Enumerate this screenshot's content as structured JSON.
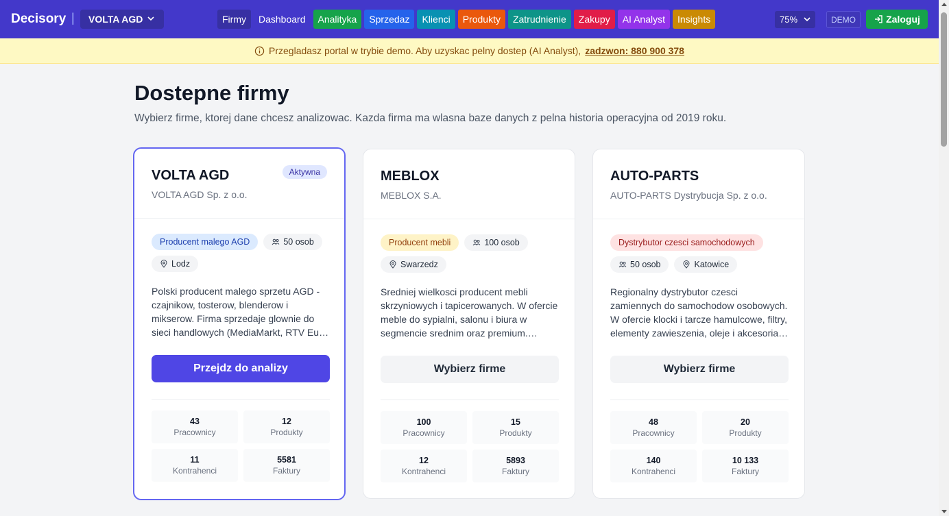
{
  "header": {
    "brand": "Decisory",
    "separator": "|",
    "company_selected": "VOLTA AGD",
    "nav": [
      {
        "label": "Firmy",
        "bg": "#3730a3"
      },
      {
        "label": "Dashboard",
        "bg": "transparent"
      },
      {
        "label": "Analityka",
        "bg": "#16a34a"
      },
      {
        "label": "Sprzedaz",
        "bg": "#2563eb"
      },
      {
        "label": "Klienci",
        "bg": "#0891b2"
      },
      {
        "label": "Produkty",
        "bg": "#ea580c"
      },
      {
        "label": "Zatrudnienie",
        "bg": "#0d9488"
      },
      {
        "label": "Zakupy",
        "bg": "#e11d48"
      },
      {
        "label": "AI Analyst",
        "bg": "#9333ea"
      },
      {
        "label": "Insights",
        "bg": "#ca8a04"
      }
    ],
    "zoom": "75%",
    "demo_badge": "DEMO",
    "login": "Zaloguj"
  },
  "banner": {
    "text": "Przegladasz portal w trybie demo. Aby uzyskac pelny dostep (AI Analyst),",
    "link": "zadzwon: 880 900 378"
  },
  "page": {
    "title": "Dostepne firmy",
    "subtitle": "Wybierz firme, ktorej dane chcesz analizowac. Kazda firma ma wlasna baze danych z pelna historia operacyjna od 2019 roku."
  },
  "companies": [
    {
      "name": "VOLTA AGD",
      "legal": "VOLTA AGD Sp. z o.o.",
      "active_badge": "Aktywna",
      "industry": "Producent malego AGD",
      "industry_bg": "#dbeafe",
      "industry_fg": "#1e40af",
      "size": "50 osob",
      "city": "Lodz",
      "description": "Polski producent malego sprzetu AGD - czajnikow, tosterow, blenderow i mikserow. Firma sprzedaje glownie do sieci handlowych (MediaMarkt, RTV Euro AGD) oraz przez wlasny sklep internetowy.",
      "cta": "Przejdz do analizy",
      "stats": [
        {
          "value": "43",
          "label": "Pracownicy"
        },
        {
          "value": "12",
          "label": "Produkty"
        },
        {
          "value": "11",
          "label": "Kontrahenci"
        },
        {
          "value": "5581",
          "label": "Faktury"
        }
      ]
    },
    {
      "name": "MEBLOX",
      "legal": "MEBLOX S.A.",
      "industry": "Producent mebli",
      "industry_bg": "#fef3c7",
      "industry_fg": "#92400e",
      "size": "100 osob",
      "city": "Swarzedz",
      "description": "Sredniej wielkosci producent mebli skrzyniowych i tapicerowanych. W ofercie meble do sypialni, salonu i biura w segmencie srednim oraz premium. Eksportuje do Niemiec i Skandynawii.",
      "cta": "Wybierz firme",
      "stats": [
        {
          "value": "100",
          "label": "Pracownicy"
        },
        {
          "value": "15",
          "label": "Produkty"
        },
        {
          "value": "12",
          "label": "Kontrahenci"
        },
        {
          "value": "5893",
          "label": "Faktury"
        }
      ]
    },
    {
      "name": "AUTO-PARTS",
      "legal": "AUTO-PARTS Dystrybucja Sp. z o.o.",
      "industry": "Dystrybutor czesci samochodowych",
      "industry_bg": "#fee2e2",
      "industry_fg": "#991b1b",
      "size": "50 osob",
      "city": "Katowice",
      "description": "Regionalny dystrybutor czesci zamiennych do samochodow osobowych. W ofercie klocki i tarcze hamulcowe, filtry, elementy zawieszenia, oleje i akcesoria. Obsluguje warsztaty i sklepy motoryzacyjne.",
      "cta": "Wybierz firme",
      "stats": [
        {
          "value": "48",
          "label": "Pracownicy"
        },
        {
          "value": "20",
          "label": "Produkty"
        },
        {
          "value": "140",
          "label": "Kontrahenci"
        },
        {
          "value": "10 133",
          "label": "Faktury"
        }
      ]
    }
  ]
}
